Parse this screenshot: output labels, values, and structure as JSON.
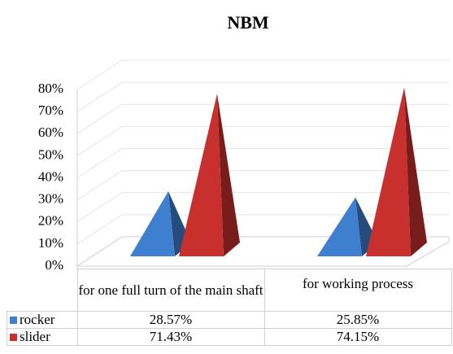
{
  "chart_data": {
    "type": "pyramid3d",
    "title": "NBM",
    "categories": [
      "for one full turn of the main shaft",
      "for working process"
    ],
    "series": [
      {
        "name": "rocker",
        "color": "#3f7fd0",
        "values": [
          28.57,
          25.85
        ],
        "value_labels": [
          "28.57%",
          "25.85%"
        ]
      },
      {
        "name": "slider",
        "color": "#c8302e",
        "values": [
          71.43,
          74.15
        ],
        "value_labels": [
          "71.43%",
          "74.15%"
        ]
      }
    ],
    "ylim": [
      0,
      80
    ],
    "yticks": [
      {
        "value": 0,
        "label": "0%"
      },
      {
        "value": 10,
        "label": "10%"
      },
      {
        "value": 20,
        "label": "20%"
      },
      {
        "value": 30,
        "label": "30%"
      },
      {
        "value": 40,
        "label": "40%"
      },
      {
        "value": 50,
        "label": "50%"
      },
      {
        "value": 60,
        "label": "60%"
      },
      {
        "value": 70,
        "label": "70%"
      },
      {
        "value": 80,
        "label": "80%"
      }
    ],
    "grid": true
  }
}
